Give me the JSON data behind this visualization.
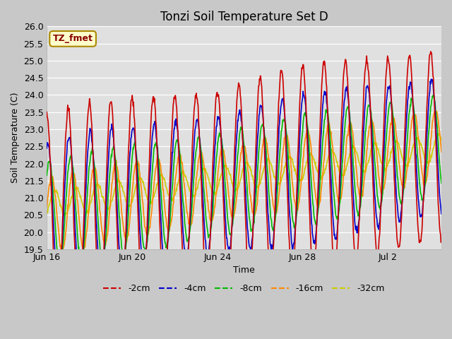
{
  "title": "Tonzi Soil Temperature Set D",
  "xlabel": "Time",
  "ylabel": "Soil Temperature (C)",
  "ylim": [
    19.5,
    26.0
  ],
  "yticks": [
    19.5,
    20.0,
    20.5,
    21.0,
    21.5,
    22.0,
    22.5,
    23.0,
    23.5,
    24.0,
    24.5,
    25.0,
    25.5,
    26.0
  ],
  "xtick_labels": [
    "Jun 16",
    "Jun 20",
    "Jun 24",
    "Jun 28",
    "Jul 2"
  ],
  "xtick_positions": [
    0,
    4,
    8,
    12,
    16
  ],
  "n_days": 18.5,
  "series": {
    "-2cm": {
      "color": "#cc0000",
      "lw": 1.2
    },
    "-4cm": {
      "color": "#0000cc",
      "lw": 1.2
    },
    "-8cm": {
      "color": "#00bb00",
      "lw": 1.2
    },
    "-16cm": {
      "color": "#ff8800",
      "lw": 1.2
    },
    "-32cm": {
      "color": "#cccc00",
      "lw": 1.2
    }
  },
  "annotation_text": "TZ_fmet",
  "annotation_color": "#880000",
  "annotation_bg": "#ffffcc",
  "annotation_border": "#aa8800",
  "fig_bg": "#c8c8c8",
  "plot_bg": "#e0e0e0",
  "grid_color": "#ffffff",
  "title_fontsize": 12,
  "axis_label_fontsize": 9,
  "tick_fontsize": 9
}
